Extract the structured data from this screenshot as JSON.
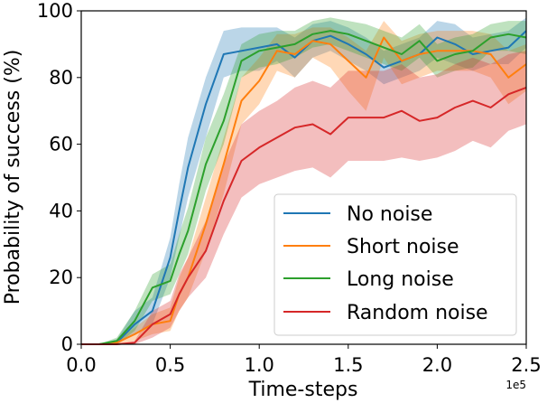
{
  "chart_data": {
    "type": "line",
    "xlabel": "Time-steps",
    "ylabel": "Probability of success (%)",
    "x_offset_label": "1e5",
    "xlim": [
      0.0,
      2.5
    ],
    "ylim": [
      0,
      100
    ],
    "xticks": [
      0.0,
      0.5,
      1.0,
      1.5,
      2.0,
      2.5
    ],
    "xtick_labels": [
      "0.0",
      "0.5",
      "1.0",
      "1.5",
      "2.0",
      "2.5"
    ],
    "yticks": [
      0,
      20,
      40,
      60,
      80,
      100
    ],
    "ytick_labels": [
      "0",
      "20",
      "40",
      "60",
      "80",
      "100"
    ],
    "legend_position": "lower-right",
    "x": [
      0.0,
      0.1,
      0.2,
      0.3,
      0.4,
      0.5,
      0.55,
      0.6,
      0.7,
      0.8,
      0.9,
      1.0,
      1.1,
      1.2,
      1.3,
      1.4,
      1.5,
      1.6,
      1.7,
      1.8,
      1.9,
      2.0,
      2.1,
      2.2,
      2.3,
      2.4,
      2.5
    ],
    "series": [
      {
        "name": "No noise",
        "color": "#1f77b4",
        "values": [
          0,
          0,
          0.5,
          6,
          10,
          26,
          40,
          53,
          72,
          87,
          88,
          89,
          90,
          86,
          91,
          92.5,
          90,
          87,
          83,
          85,
          87,
          92,
          90,
          87,
          88,
          89,
          94
        ],
        "lower": [
          0,
          0,
          0,
          3,
          6,
          20,
          32,
          44,
          62,
          80,
          82,
          82,
          85,
          80,
          86,
          88,
          85,
          82,
          78,
          80,
          82,
          86,
          84,
          82,
          84,
          84,
          89
        ],
        "upper": [
          0,
          0,
          1.5,
          10,
          14,
          32,
          48,
          62,
          80,
          94,
          95,
          95,
          95,
          92,
          96,
          97,
          95,
          92,
          88,
          90,
          92,
          97,
          96,
          92,
          93,
          94,
          98
        ]
      },
      {
        "name": "Short noise",
        "color": "#ff7f0e",
        "values": [
          0,
          0,
          0.5,
          3,
          6,
          7,
          15,
          20,
          36,
          54,
          73,
          79,
          88,
          87,
          91,
          90,
          85,
          80,
          92,
          85,
          87,
          88,
          88,
          88,
          87,
          80,
          84
        ],
        "lower": [
          0,
          0,
          0,
          1,
          3,
          4,
          10,
          14,
          28,
          45,
          66,
          72,
          82,
          80,
          86,
          83,
          76,
          70,
          86,
          78,
          80,
          82,
          82,
          82,
          80,
          72,
          76
        ],
        "upper": [
          0,
          0,
          1,
          5,
          9,
          11,
          20,
          26,
          44,
          62,
          80,
          86,
          93,
          93,
          95,
          95,
          92,
          88,
          97,
          91,
          93,
          94,
          94,
          94,
          93,
          88,
          90
        ]
      },
      {
        "name": "Long noise",
        "color": "#2ca02c",
        "values": [
          0,
          0,
          1,
          7,
          17,
          19,
          27,
          34,
          54,
          67,
          85,
          88,
          89,
          90,
          93,
          94,
          93,
          91,
          89,
          87,
          91,
          85,
          87,
          88,
          92,
          93,
          92
        ],
        "lower": [
          0,
          0,
          0,
          4,
          13,
          15,
          21,
          27,
          46,
          60,
          80,
          83,
          84,
          86,
          89,
          90,
          88,
          86,
          84,
          82,
          86,
          80,
          82,
          83,
          88,
          88,
          87
        ],
        "upper": [
          0,
          0,
          2,
          10,
          21,
          24,
          33,
          41,
          62,
          75,
          90,
          93,
          94,
          94,
          97,
          98,
          97,
          96,
          94,
          92,
          96,
          90,
          92,
          93,
          96,
          97,
          97
        ]
      },
      {
        "name": "Random noise",
        "color": "#d62728",
        "values": [
          0,
          0,
          0,
          0.5,
          6,
          9,
          15,
          20,
          28,
          43,
          55,
          59,
          62,
          65,
          66,
          63,
          68,
          68,
          68,
          70,
          67,
          68,
          71,
          73,
          71,
          75,
          77
        ],
        "lower": [
          0,
          0,
          0,
          0,
          2,
          5,
          10,
          14,
          20,
          33,
          44,
          48,
          50,
          52,
          53,
          50,
          55,
          55,
          55,
          56,
          55,
          56,
          58,
          61,
          59,
          64,
          66
        ],
        "upper": [
          0,
          0,
          0,
          1,
          10,
          13,
          21,
          26,
          37,
          54,
          66,
          70,
          73,
          77,
          79,
          77,
          82,
          82,
          82,
          84,
          80,
          81,
          84,
          86,
          84,
          87,
          88
        ]
      }
    ]
  }
}
